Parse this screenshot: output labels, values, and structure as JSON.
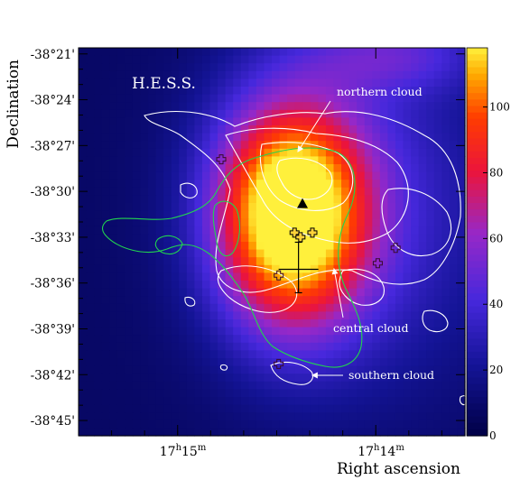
{
  "chart_data": {
    "type": "heatmap",
    "title": "",
    "annotation_title": "H.E.S.S.",
    "xlabel": "Right ascension",
    "ylabel": "Declination",
    "x_ticks": [
      {
        "label_hour": "17",
        "label_h": "h",
        "label_min": "15",
        "label_m": "m",
        "ra_min": 1035
      },
      {
        "label_hour": "17",
        "label_h": "h",
        "label_min": "14",
        "label_m": "m",
        "ra_min": 1034
      }
    ],
    "xlim_ra_min": [
      1035.5,
      1033.55
    ],
    "y_ticks": [
      "-38°21'",
      "-38°24'",
      "-38°27'",
      "-38°30'",
      "-38°33'",
      "-38°36'",
      "-38°39'",
      "-38°42'",
      "-38°45'"
    ],
    "y_tick_values_arcmin": [
      -2301,
      -2304,
      -2307,
      -2310,
      -2313,
      -2316,
      -2319,
      -2322,
      -2325
    ],
    "ylim_arcmin": [
      -2326,
      -2300.6
    ],
    "colorbar": {
      "ticks": [
        "0",
        "20",
        "40",
        "60",
        "80",
        "100"
      ],
      "tick_values": [
        0,
        20,
        40,
        60,
        80,
        100
      ],
      "range": [
        0,
        118
      ]
    },
    "excess_peak": {
      "ra_min": 1034.43,
      "dec_arcmin": -2311.5,
      "value": 118
    },
    "annotations": [
      {
        "id": "northern",
        "text": "northern cloud"
      },
      {
        "id": "central",
        "text": "central cloud"
      },
      {
        "id": "southern",
        "text": "southern cloud"
      }
    ],
    "markers": {
      "triangle": {
        "ra_min": 1034.37,
        "dec_arcmin": -2310.8
      },
      "best_fit_cross": {
        "ra_min": 1034.39,
        "dec_arcmin": -2315.1
      },
      "plus_markers": [
        {
          "ra_min": 1034.78,
          "dec_arcmin": -2307.9
        },
        {
          "ra_min": 1034.41,
          "dec_arcmin": -2312.7
        },
        {
          "ra_min": 1034.32,
          "dec_arcmin": -2312.7
        },
        {
          "ra_min": 1034.38,
          "dec_arcmin": -2313.0
        },
        {
          "ra_min": 1034.49,
          "dec_arcmin": -2315.5
        },
        {
          "ra_min": 1033.99,
          "dec_arcmin": -2314.7
        },
        {
          "ra_min": 1033.9,
          "dec_arcmin": -2313.7
        },
        {
          "ra_min": 1034.49,
          "dec_arcmin": -2321.3
        }
      ]
    },
    "grid": false,
    "legend": "none"
  },
  "colors": {
    "contour_white": "#ffffff",
    "contour_green": "#21d44f",
    "background": "#ffffff",
    "axis": "#000000"
  }
}
